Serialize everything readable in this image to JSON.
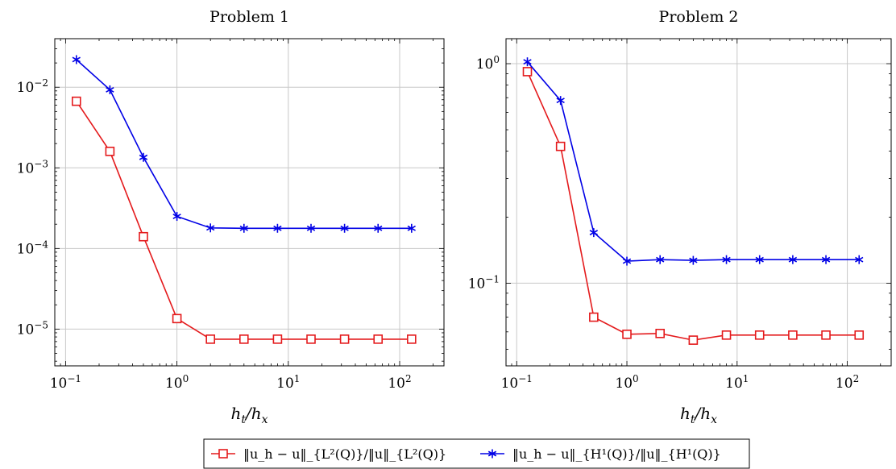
{
  "chart_data": [
    {
      "type": "line",
      "title": "Problem 1",
      "xlabel": "h_t/h_x",
      "ylabel": "",
      "xscale": "log",
      "yscale": "log",
      "xlim": [
        0.08,
        250
      ],
      "ylim": [
        3.5e-06,
        0.04
      ],
      "grid": true,
      "x": [
        0.125,
        0.25,
        0.5,
        1,
        2,
        4,
        8,
        16,
        32,
        64,
        128
      ],
      "xticks": [
        {
          "value": 0.1,
          "label": "10^-1"
        },
        {
          "value": 1,
          "label": "10^0"
        },
        {
          "value": 10,
          "label": "10^1"
        },
        {
          "value": 100,
          "label": "10^2"
        }
      ],
      "yticks": [
        {
          "value": 1e-05,
          "label": "10^-5"
        },
        {
          "value": 0.0001,
          "label": "10^-4"
        },
        {
          "value": 0.001,
          "label": "10^-3"
        },
        {
          "value": 0.01,
          "label": "10^-2"
        }
      ],
      "series": [
        {
          "name": "||u_h - u||_{L^2(Q)}/||u||_{L^2(Q)}",
          "color": "#e41a1c",
          "marker": "square",
          "values": [
            0.0067,
            0.0016,
            0.00014,
            1.35e-05,
            7.5e-06,
            7.5e-06,
            7.5e-06,
            7.5e-06,
            7.5e-06,
            7.5e-06,
            7.5e-06
          ]
        },
        {
          "name": "||u_h - u||_{H^1(Q)}/||u||_{H^1(Q)}",
          "color": "#0000e6",
          "marker": "star",
          "values": [
            0.022,
            0.0093,
            0.00135,
            0.00025,
            0.00018,
            0.000178,
            0.000178,
            0.000178,
            0.000178,
            0.000178,
            0.000178
          ]
        }
      ]
    },
    {
      "type": "line",
      "title": "Problem 2",
      "xlabel": "h_t/h_x",
      "ylabel": "",
      "xscale": "log",
      "yscale": "log",
      "xlim": [
        0.08,
        250
      ],
      "ylim": [
        0.042,
        1.3
      ],
      "grid": true,
      "x": [
        0.125,
        0.25,
        0.5,
        1,
        2,
        4,
        8,
        16,
        32,
        64,
        128
      ],
      "xticks": [
        {
          "value": 0.1,
          "label": "10^-1"
        },
        {
          "value": 1,
          "label": "10^0"
        },
        {
          "value": 10,
          "label": "10^1"
        },
        {
          "value": 100,
          "label": "10^2"
        }
      ],
      "yticks": [
        {
          "value": 0.1,
          "label": "10^-1"
        },
        {
          "value": 1,
          "label": "10^0"
        }
      ],
      "series": [
        {
          "name": "||u_h - u||_{L^2(Q)}/||u||_{L^2(Q)}",
          "color": "#e41a1c",
          "marker": "square",
          "values": [
            0.92,
            0.42,
            0.07,
            0.0585,
            0.059,
            0.055,
            0.058,
            0.058,
            0.058,
            0.058,
            0.058
          ]
        },
        {
          "name": "||u_h - u||_{H^1(Q)}/||u||_{H^1(Q)}",
          "color": "#0000e6",
          "marker": "star",
          "values": [
            1.02,
            0.68,
            0.17,
            0.126,
            0.128,
            0.127,
            0.128,
            0.128,
            0.128,
            0.128,
            0.128
          ]
        }
      ]
    }
  ],
  "legend": {
    "placement": "bottom-center",
    "entries": [
      {
        "label": "‖u_h − u‖_{L²(Q)}/‖u‖_{L²(Q)}",
        "color": "#e41a1c",
        "marker": "square"
      },
      {
        "label": "‖u_h − u‖_{H¹(Q)}/‖u‖_{H¹(Q)}",
        "color": "#0000e6",
        "marker": "star"
      }
    ]
  }
}
